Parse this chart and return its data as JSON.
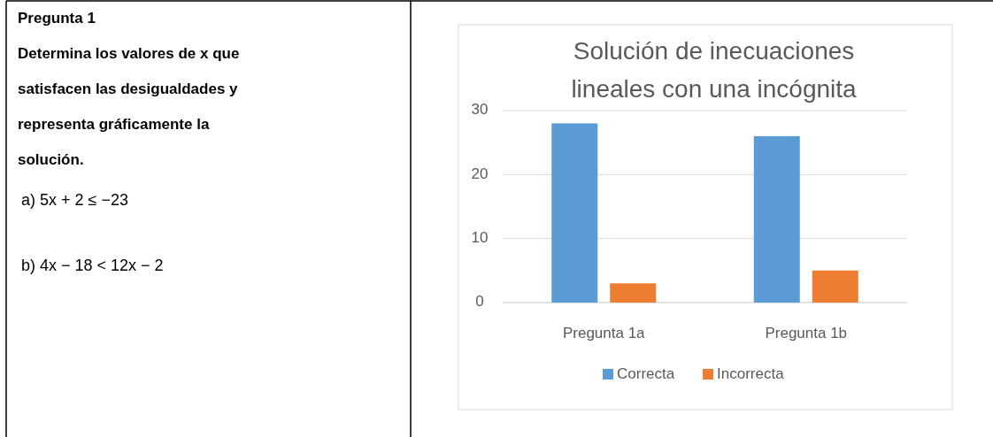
{
  "chart_data": [
    {
      "type": "other",
      "title": "Pregunta 1",
      "annotations": [
        "Determina los valores de x que satisfacen las desigualdades y representa gráficamente la solución.",
        "a) 5x + 2 ≤ −23",
        "b) 4x − 18 < 12x − 2"
      ]
    },
    {
      "type": "bar",
      "title": "Solución de inecuaciones lineales con una incógnita",
      "categories": [
        "Pregunta 1a",
        "Pregunta 1b"
      ],
      "series": [
        {
          "name": "Correcta",
          "color": "#5b9bd5",
          "values": [
            28,
            26
          ]
        },
        {
          "name": "Incorrecta",
          "color": "#ed7d31",
          "values": [
            3,
            5
          ]
        }
      ],
      "ylim": [
        0,
        30
      ],
      "yticks": [
        0,
        10,
        20,
        30
      ],
      "grid": "y",
      "legend": "bottom"
    }
  ]
}
